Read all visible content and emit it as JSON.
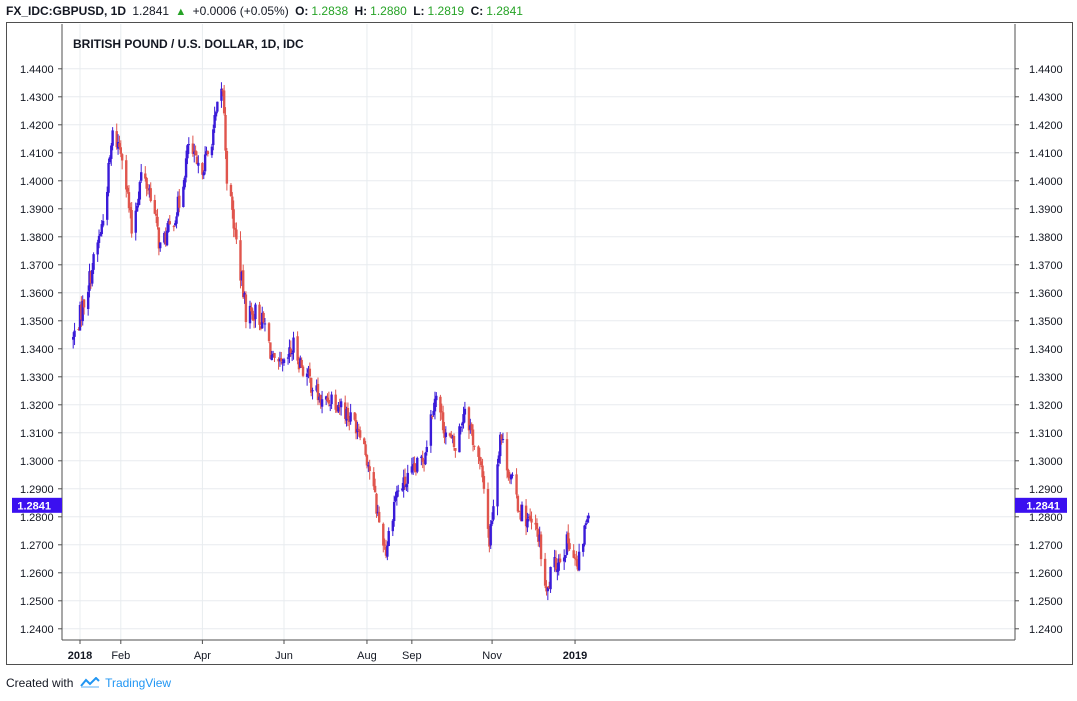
{
  "header": {
    "symbol": "FX_IDC:GBPUSD, 1D",
    "last": "1.2841",
    "up_arrow": "▲",
    "change": "+0.0006 (+0.05%)",
    "o_label": "O:",
    "o_value": "1.2838",
    "h_label": "H:",
    "h_value": "1.2880",
    "l_label": "L:",
    "l_value": "1.2819",
    "c_label": "C:",
    "c_value": "1.2841"
  },
  "footer": {
    "created_with": "Created with",
    "brand": "TradingView",
    "brand_icon": "tradingview-logo-icon"
  },
  "colors": {
    "up": "#3a1bd8",
    "down": "#e0554d",
    "grid": "#e8ecef",
    "price_tag": "#3b10f0"
  },
  "chart_data": {
    "type": "candlestick",
    "title": "BRITISH POUND / U.S. DOLLAR, 1D, IDC",
    "ylim": [
      1.236,
      1.456
    ],
    "y_ticks": [
      "1.4400",
      "1.4300",
      "1.4200",
      "1.4100",
      "1.4000",
      "1.3900",
      "1.3800",
      "1.3700",
      "1.3600",
      "1.3500",
      "1.3400",
      "1.3300",
      "1.3200",
      "1.3100",
      "1.3000",
      "1.2900",
      "1.2800",
      "1.2700",
      "1.2600",
      "1.2500",
      "1.2400"
    ],
    "x_ticks": [
      {
        "label": "2018",
        "date": "2018-01-02",
        "bold": true
      },
      {
        "label": "Feb",
        "date": "2018-02-01",
        "bold": false
      },
      {
        "label": "Apr",
        "date": "2018-04-02",
        "bold": false
      },
      {
        "label": "Jun",
        "date": "2018-06-01",
        "bold": false
      },
      {
        "label": "Aug",
        "date": "2018-08-01",
        "bold": false
      },
      {
        "label": "Sep",
        "date": "2018-09-03",
        "bold": false
      },
      {
        "label": "Nov",
        "date": "2018-11-01",
        "bold": false
      },
      {
        "label": "2019",
        "date": "2019-01-01",
        "bold": true
      }
    ],
    "last_price": "1.2841",
    "close_points": [
      [
        "2017-12-28",
        1.3435
      ],
      [
        "2018-01-05",
        1.357
      ],
      [
        "2018-01-12",
        1.371
      ],
      [
        "2018-01-19",
        1.386
      ],
      [
        "2018-01-26",
        1.416
      ],
      [
        "2018-02-02",
        1.411
      ],
      [
        "2018-02-09",
        1.382
      ],
      [
        "2018-02-16",
        1.402
      ],
      [
        "2018-02-23",
        1.396
      ],
      [
        "2018-03-02",
        1.376
      ],
      [
        "2018-03-09",
        1.383
      ],
      [
        "2018-03-16",
        1.392
      ],
      [
        "2018-03-23",
        1.413
      ],
      [
        "2018-03-30",
        1.403
      ],
      [
        "2018-04-06",
        1.409
      ],
      [
        "2018-04-13",
        1.425
      ],
      [
        "2018-04-17",
        1.433
      ],
      [
        "2018-04-20",
        1.402
      ],
      [
        "2018-04-27",
        1.378
      ],
      [
        "2018-05-04",
        1.353
      ],
      [
        "2018-05-11",
        1.353
      ],
      [
        "2018-05-18",
        1.348
      ],
      [
        "2018-05-25",
        1.333
      ],
      [
        "2018-06-01",
        1.333
      ],
      [
        "2018-06-08",
        1.341
      ],
      [
        "2018-06-15",
        1.333
      ],
      [
        "2018-06-22",
        1.327
      ],
      [
        "2018-06-29",
        1.32
      ],
      [
        "2018-07-06",
        1.323
      ],
      [
        "2018-07-13",
        1.32
      ],
      [
        "2018-07-20",
        1.315
      ],
      [
        "2018-07-27",
        1.312
      ],
      [
        "2018-08-03",
        1.297
      ],
      [
        "2018-08-10",
        1.278
      ],
      [
        "2018-08-15",
        1.268
      ],
      [
        "2018-08-22",
        1.288
      ],
      [
        "2018-08-29",
        1.292
      ],
      [
        "2018-09-05",
        1.296
      ],
      [
        "2018-09-12",
        1.302
      ],
      [
        "2018-09-20",
        1.324
      ],
      [
        "2018-09-28",
        1.31
      ],
      [
        "2018-10-05",
        1.304
      ],
      [
        "2018-10-12",
        1.32
      ],
      [
        "2018-10-19",
        1.306
      ],
      [
        "2018-10-26",
        1.292
      ],
      [
        "2018-10-30",
        1.271
      ],
      [
        "2018-11-07",
        1.31
      ],
      [
        "2018-11-14",
        1.295
      ],
      [
        "2018-11-21",
        1.283
      ],
      [
        "2018-11-28",
        1.278
      ],
      [
        "2018-12-05",
        1.274
      ],
      [
        "2018-12-11",
        1.251
      ],
      [
        "2018-12-14",
        1.259
      ],
      [
        "2018-12-21",
        1.266
      ],
      [
        "2018-12-28",
        1.272
      ],
      [
        "2019-01-03",
        1.261
      ],
      [
        "2019-01-08",
        1.275
      ],
      [
        "2019-01-11",
        1.2841
      ]
    ]
  }
}
